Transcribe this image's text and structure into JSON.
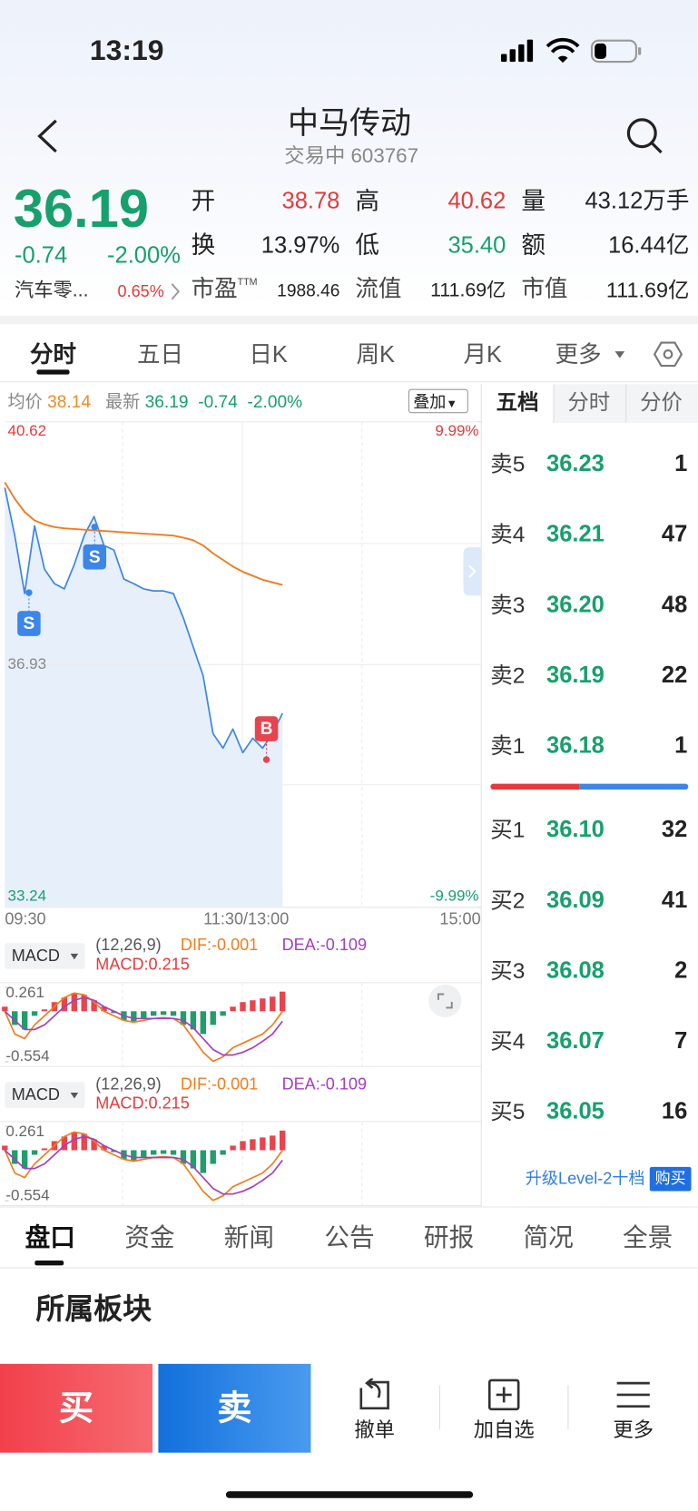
{
  "status_bar": {
    "time": "13:19"
  },
  "header": {
    "title": "中马传动",
    "subtitle": "交易中 603767"
  },
  "quote": {
    "price": "36.19",
    "change": "-0.74",
    "change_pct": "-2.00%",
    "stats": [
      [
        {
          "label": "开",
          "value": "38.78"
        },
        {
          "label": "高",
          "value": "40.62"
        },
        {
          "label": "量",
          "value": "43.12万手"
        }
      ],
      [
        {
          "label": "换",
          "value": "13.97%"
        },
        {
          "label": "低",
          "value": "35.40"
        },
        {
          "label": "额",
          "value": "16.44亿"
        }
      ],
      [
        {
          "label": "市盈",
          "sup": "TTM",
          "value": "1988.46"
        },
        {
          "label": "流值",
          "value": "111.69亿"
        },
        {
          "label": "市值",
          "value": "111.69亿"
        }
      ]
    ],
    "sector": "汽车零...",
    "sector_change": "0.65%"
  },
  "period_tabs": [
    "分时",
    "五日",
    "日K",
    "周K",
    "月K",
    "更多"
  ],
  "intraday_chart": {
    "type": "line",
    "avg_label": "均价",
    "avg_value": "38.14",
    "latest_label": "最新",
    "latest_value": "36.19",
    "latest_change": "-0.74",
    "latest_change_pct": "-2.00%",
    "overlay_button": "叠加",
    "series": [
      {
        "color": "#3b86e8",
        "values": [
          39.62,
          38.89,
          38.01,
          39.04,
          38.38,
          38.16,
          38.08,
          38.45,
          38.89,
          39.18,
          38.74,
          38.67,
          38.23,
          38.16,
          38.08,
          38.05,
          38.05,
          38.01,
          37.64,
          37.2,
          36.76,
          35.88,
          35.66,
          35.95,
          35.59,
          35.81,
          35.66,
          35.88,
          36.19,
          null,
          null,
          null,
          null,
          null,
          null,
          null,
          null,
          null,
          null,
          null,
          null,
          null,
          null,
          null,
          null,
          null,
          null,
          null,
          null
        ]
      },
      {
        "color": "#f07d1e",
        "values": [
          39.7,
          39.45,
          39.25,
          39.12,
          39.06,
          39.02,
          39.0,
          38.99,
          38.98,
          38.97,
          38.96,
          38.95,
          38.94,
          38.93,
          38.92,
          38.91,
          38.9,
          38.89,
          38.86,
          38.82,
          38.74,
          38.62,
          38.52,
          38.42,
          38.34,
          38.28,
          38.22,
          38.18,
          38.14,
          null,
          null,
          null,
          null,
          null,
          null,
          null,
          null,
          null,
          null,
          null,
          null,
          null,
          null,
          null,
          null,
          null,
          null,
          null,
          null
        ]
      }
    ],
    "ylim": [
      33.24,
      40.62
    ],
    "yticks": [
      40.62,
      36.93,
      33.24
    ],
    "y2lim": [
      -9.99,
      9.99
    ],
    "y2ticks": [
      {
        "value": 9.99,
        "label": "9.99%"
      },
      {
        "value": -9.99,
        "label": "-9.99%"
      }
    ],
    "x_labels": [
      "09:30",
      "11:30/13:00",
      "15:00"
    ],
    "markers": [
      "S",
      "S",
      "B"
    ]
  },
  "macd_panels": [
    {
      "type": "bar",
      "indicator": "MACD",
      "params": "(12,26,9)",
      "dif_label": "DIF:-0.001",
      "dea_label": "DEA:-0.109",
      "macd_label": "MACD:0.215",
      "ylim": [
        -0.554,
        0.261
      ],
      "yticks": [
        0.261,
        -0.554
      ],
      "histogram": [
        0.05,
        -0.15,
        -0.2,
        -0.05,
        0.02,
        0.1,
        0.15,
        0.2,
        0.18,
        0.12,
        0.05,
        -0.02,
        -0.1,
        -0.12,
        -0.08,
        -0.05,
        -0.04,
        -0.05,
        -0.15,
        -0.2,
        -0.25,
        -0.15,
        -0.05,
        0.05,
        0.1,
        0.12,
        0.14,
        0.16,
        0.215,
        null,
        null,
        null,
        null,
        null,
        null,
        null,
        null,
        null,
        null,
        null,
        null,
        null,
        null,
        null,
        null,
        null,
        null,
        null,
        null
      ],
      "dif": [
        0.0,
        -0.25,
        -0.3,
        -0.15,
        -0.05,
        0.05,
        0.15,
        0.2,
        0.18,
        0.1,
        0.0,
        -0.05,
        -0.1,
        -0.12,
        -0.1,
        -0.08,
        -0.07,
        -0.08,
        -0.15,
        -0.3,
        -0.45,
        -0.55,
        -0.5,
        -0.4,
        -0.35,
        -0.3,
        -0.25,
        -0.15,
        -0.001,
        null,
        null,
        null,
        null,
        null,
        null,
        null,
        null,
        null,
        null,
        null,
        null,
        null,
        null,
        null,
        null,
        null,
        null,
        null,
        null
      ],
      "dea": [
        0.0,
        -0.1,
        -0.2,
        -0.2,
        -0.15,
        -0.05,
        0.05,
        0.12,
        0.15,
        0.12,
        0.05,
        0.0,
        -0.05,
        -0.08,
        -0.08,
        -0.08,
        -0.08,
        -0.08,
        -0.1,
        -0.18,
        -0.3,
        -0.42,
        -0.48,
        -0.48,
        -0.45,
        -0.4,
        -0.33,
        -0.25,
        -0.109,
        null,
        null,
        null,
        null,
        null,
        null,
        null,
        null,
        null,
        null,
        null,
        null,
        null,
        null,
        null,
        null,
        null,
        null,
        null,
        null
      ]
    },
    {
      "type": "bar",
      "indicator": "MACD",
      "params": "(12,26,9)",
      "dif_label": "DIF:-0.001",
      "dea_label": "DEA:-0.109",
      "macd_label": "MACD:0.215",
      "ylim": [
        -0.554,
        0.261
      ],
      "yticks": [
        0.261,
        -0.554
      ],
      "histogram": [
        0.05,
        -0.15,
        -0.2,
        -0.05,
        0.02,
        0.1,
        0.15,
        0.2,
        0.18,
        0.12,
        0.05,
        -0.02,
        -0.1,
        -0.12,
        -0.08,
        -0.05,
        -0.04,
        -0.05,
        -0.15,
        -0.2,
        -0.25,
        -0.15,
        -0.05,
        0.05,
        0.1,
        0.12,
        0.14,
        0.16,
        0.215,
        null,
        null,
        null,
        null,
        null,
        null,
        null,
        null,
        null,
        null,
        null,
        null,
        null,
        null,
        null,
        null,
        null,
        null,
        null,
        null
      ],
      "dif": [
        0.0,
        -0.25,
        -0.3,
        -0.15,
        -0.05,
        0.05,
        0.15,
        0.2,
        0.18,
        0.1,
        0.0,
        -0.05,
        -0.1,
        -0.12,
        -0.1,
        -0.08,
        -0.07,
        -0.08,
        -0.15,
        -0.3,
        -0.45,
        -0.55,
        -0.5,
        -0.4,
        -0.35,
        -0.3,
        -0.25,
        -0.15,
        -0.001,
        null,
        null,
        null,
        null,
        null,
        null,
        null,
        null,
        null,
        null,
        null,
        null,
        null,
        null,
        null,
        null,
        null,
        null,
        null,
        null
      ],
      "dea": [
        0.0,
        -0.1,
        -0.2,
        -0.2,
        -0.15,
        -0.05,
        0.05,
        0.12,
        0.15,
        0.12,
        0.05,
        0.0,
        -0.05,
        -0.08,
        -0.08,
        -0.08,
        -0.08,
        -0.08,
        -0.1,
        -0.18,
        -0.3,
        -0.42,
        -0.48,
        -0.48,
        -0.45,
        -0.4,
        -0.33,
        -0.25,
        -0.109,
        null,
        null,
        null,
        null,
        null,
        null,
        null,
        null,
        null,
        null,
        null,
        null,
        null,
        null,
        null,
        null,
        null,
        null,
        null,
        null
      ]
    }
  ],
  "order_book": {
    "tabs": [
      "五档",
      "分时",
      "分价"
    ],
    "asks": [
      {
        "label": "卖5",
        "price": "36.23",
        "volume": "1"
      },
      {
        "label": "卖4",
        "price": "36.21",
        "volume": "47"
      },
      {
        "label": "卖3",
        "price": "36.20",
        "volume": "48"
      },
      {
        "label": "卖2",
        "price": "36.19",
        "volume": "22"
      },
      {
        "label": "卖1",
        "price": "36.18",
        "volume": "1"
      }
    ],
    "bids": [
      {
        "label": "买1",
        "price": "36.10",
        "volume": "32"
      },
      {
        "label": "买2",
        "price": "36.09",
        "volume": "41"
      },
      {
        "label": "买3",
        "price": "36.08",
        "volume": "2"
      },
      {
        "label": "买4",
        "price": "36.07",
        "volume": "7"
      },
      {
        "label": "买5",
        "price": "36.05",
        "volume": "16"
      }
    ],
    "upgrade": "升级Level-2十档",
    "buy_button": "购买"
  },
  "detail_tabs": [
    "盘口",
    "资金",
    "新闻",
    "公告",
    "研报",
    "简况",
    "全景"
  ],
  "section_title": "所属板块",
  "action_bar": {
    "buy": "买",
    "sell": "卖",
    "items": [
      "撤单",
      "加自选",
      "更多"
    ]
  }
}
